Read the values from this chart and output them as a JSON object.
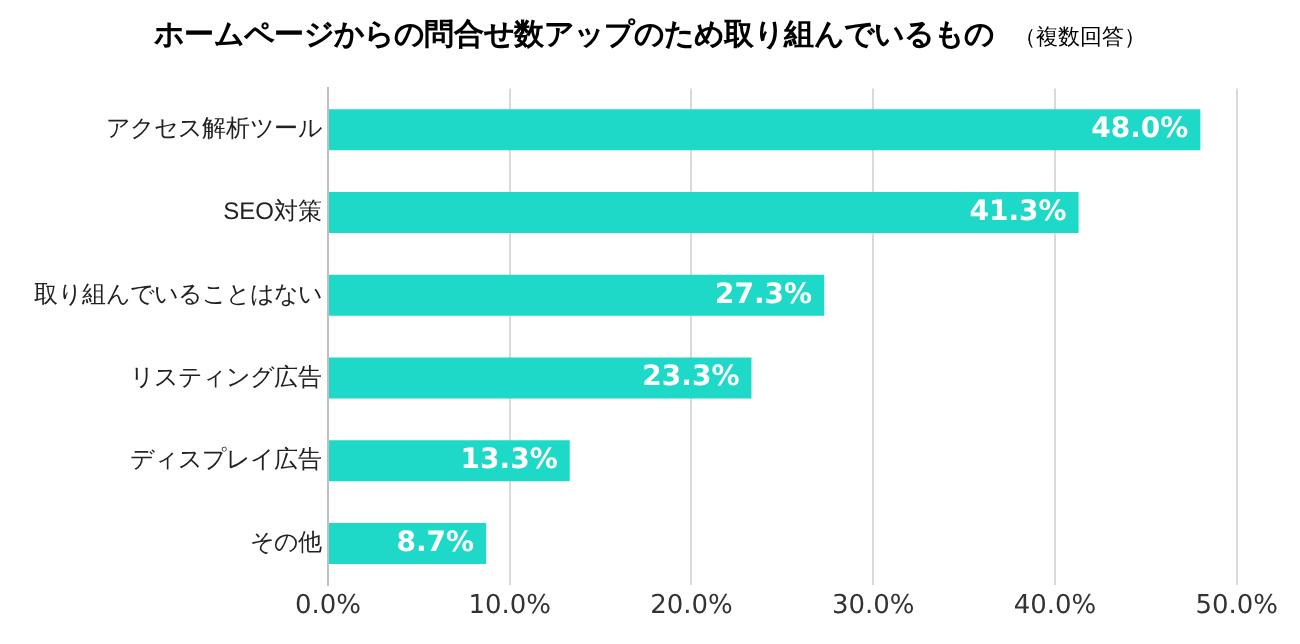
{
  "chart_data": {
    "type": "bar",
    "orientation": "horizontal",
    "title": "ホームページからの問合せ数アップのため取り組んでいるもの",
    "subtitle": "（複数回答）",
    "categories": [
      "アクセス解析ツール",
      "SEO対策",
      "取り組んでいることはない",
      "リスティング広告",
      "ディスプレイ広告",
      "その他"
    ],
    "values": [
      48.0,
      41.3,
      27.3,
      23.3,
      13.3,
      8.7
    ],
    "value_labels": [
      "48.0%",
      "41.3%",
      "27.3%",
      "23.3%",
      "13.3%",
      "8.7%"
    ],
    "color": "#1ed8c8",
    "xlim": [
      0,
      50
    ],
    "xticks": [
      {
        "value": 0,
        "label": "0.0%"
      },
      {
        "value": 10,
        "label": "10.0%"
      },
      {
        "value": 20,
        "label": "20.0%"
      },
      {
        "value": 30,
        "label": "30.0%"
      },
      {
        "value": 40,
        "label": "40.0%"
      },
      {
        "value": 50,
        "label": "50.0%"
      }
    ],
    "grid": "x",
    "legend": false
  }
}
